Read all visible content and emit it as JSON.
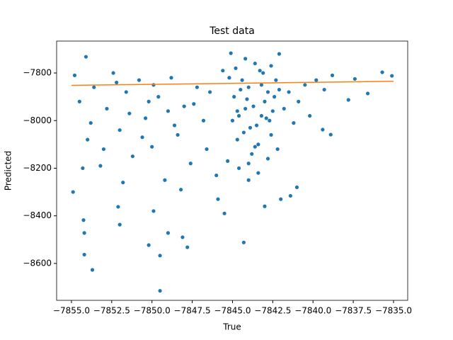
{
  "chart_data": {
    "type": "scatter",
    "title": "Test data",
    "x_label": "True",
    "y_label": "Predicted",
    "xlim": [
      -7855.92,
      -7834.12
    ],
    "ylim": [
      -8755,
      -7666
    ],
    "xticks": [
      {
        "value": -7855,
        "label": "−7855.0"
      },
      {
        "value": -7852.5,
        "label": "−7852.5"
      },
      {
        "value": -7850,
        "label": "−7850.0"
      },
      {
        "value": -7847.5,
        "label": "−7847.5"
      },
      {
        "value": -7845,
        "label": "−7845.0"
      },
      {
        "value": -7842.5,
        "label": "−7842.5"
      },
      {
        "value": -7840,
        "label": "−7840.0"
      },
      {
        "value": -7837.5,
        "label": "−7837.5"
      },
      {
        "value": -7835,
        "label": "−7835.0"
      }
    ],
    "yticks": [
      {
        "value": -8600,
        "label": "−8600"
      },
      {
        "value": -8400,
        "label": "−8400"
      },
      {
        "value": -8200,
        "label": "−8200"
      },
      {
        "value": -8000,
        "label": "−8000"
      },
      {
        "value": -7800,
        "label": "−7800"
      }
    ],
    "grid": false,
    "series": [
      {
        "type": "scatter",
        "color": "#1f77b4",
        "x": [
          -7854.8,
          -7854.5,
          -7854.0,
          -7853.6,
          -7853.2,
          -7852.8,
          -7852.4,
          -7852.0,
          -7851.6,
          -7851.2,
          -7850.8,
          -7850.4,
          -7850.0,
          -7849.6,
          -7849.2,
          -7848.8,
          -7848.4,
          -7848.0,
          -7847.6,
          -7847.2,
          -7846.8,
          -7846.4,
          -7846.0,
          -7845.6,
          -7854.9,
          -7854.3,
          -7853.8,
          -7853.0,
          -7852.2,
          -7851.4,
          -7850.6,
          -7849.9,
          -7849.0,
          -7848.2,
          -7847.4,
          -7846.6,
          -7845.9,
          -7851.8,
          -7850.2,
          -7848.6,
          -7845.2,
          -7844.9,
          -7844.6,
          -7844.3,
          -7844.0,
          -7843.7,
          -7843.4,
          -7843.1,
          -7842.8,
          -7842.5,
          -7845.0,
          -7844.7,
          -7844.4,
          -7844.1,
          -7843.8,
          -7843.5,
          -7843.2,
          -7842.9,
          -7842.6,
          -7842.3,
          -7844.8,
          -7844.5,
          -7844.2,
          -7843.9,
          -7843.6,
          -7843.3,
          -7843.0,
          -7842.7,
          -7842.4,
          -7842.1,
          -7845.3,
          -7844.6,
          -7844.0,
          -7843.4,
          -7842.8,
          -7842.2,
          -7841.8,
          -7841.5,
          -7841.2,
          -7840.9,
          -7840.5,
          -7840.2,
          -7839.8,
          -7839.3,
          -7838.8,
          -7841.0,
          -7842.0,
          -7843.0,
          -7844.0,
          -7845.5,
          -7849.5,
          -7853.7,
          -7854.2,
          -7854.2,
          -7854.25,
          -7849.5,
          -7850.2,
          -7849.0,
          -7848.1,
          -7847.8,
          -7844.3,
          -7852.0,
          -7852.1,
          -7849.9,
          -7854.1,
          -7837.4,
          -7835.7,
          -7835.1,
          -7836.6,
          -7837.8,
          -7838.9,
          -7839.4,
          -7841.4,
          -7845.1,
          -7842.1,
          -7843.6,
          -7844.2,
          -7842.6,
          -7843.2,
          -7844.7
        ],
        "y": [
          -7810,
          -7920,
          -8080,
          -7860,
          -8190,
          -7950,
          -7800,
          -8040,
          -7880,
          -8150,
          -7830,
          -7990,
          -8110,
          -7900,
          -8250,
          -7820,
          -8060,
          -7940,
          -8180,
          -7860,
          -8000,
          -7880,
          -8230,
          -7790,
          -8300,
          -8200,
          -8010,
          -8120,
          -7840,
          -7970,
          -8070,
          -7850,
          -7960,
          -8290,
          -7930,
          -8120,
          -8330,
          -8260,
          -7920,
          -8020,
          -7820,
          -7900,
          -7980,
          -8050,
          -7860,
          -7940,
          -8100,
          -7800,
          -7880,
          -7960,
          -8000,
          -8080,
          -7830,
          -7910,
          -8140,
          -8020,
          -7850,
          -7990,
          -8060,
          -7830,
          -7780,
          -7870,
          -7950,
          -8030,
          -8110,
          -7790,
          -7920,
          -8000,
          -7900,
          -7870,
          -8170,
          -8200,
          -8180,
          -8220,
          -8160,
          -8120,
          -7950,
          -7880,
          -8010,
          -7920,
          -7850,
          -7980,
          -7830,
          -7870,
          -7810,
          -8280,
          -8330,
          -8360,
          -8250,
          -8390,
          -8715,
          -8627,
          -8563,
          -8472,
          -8418,
          -8567,
          -8523,
          -8472,
          -8490,
          -8532,
          -8512,
          -8437,
          -8362,
          -8380,
          -7732,
          -7825,
          -7797,
          -7812,
          -7886,
          -7913,
          -8059,
          -8038,
          -8316,
          -7717,
          -7720,
          -7760,
          -7740,
          -7770,
          -7980,
          -7960
        ]
      },
      {
        "type": "line",
        "color": "#ff7f0e",
        "x": [
          -7855,
          -7835
        ],
        "y": [
          -7852,
          -7835
        ]
      }
    ]
  }
}
